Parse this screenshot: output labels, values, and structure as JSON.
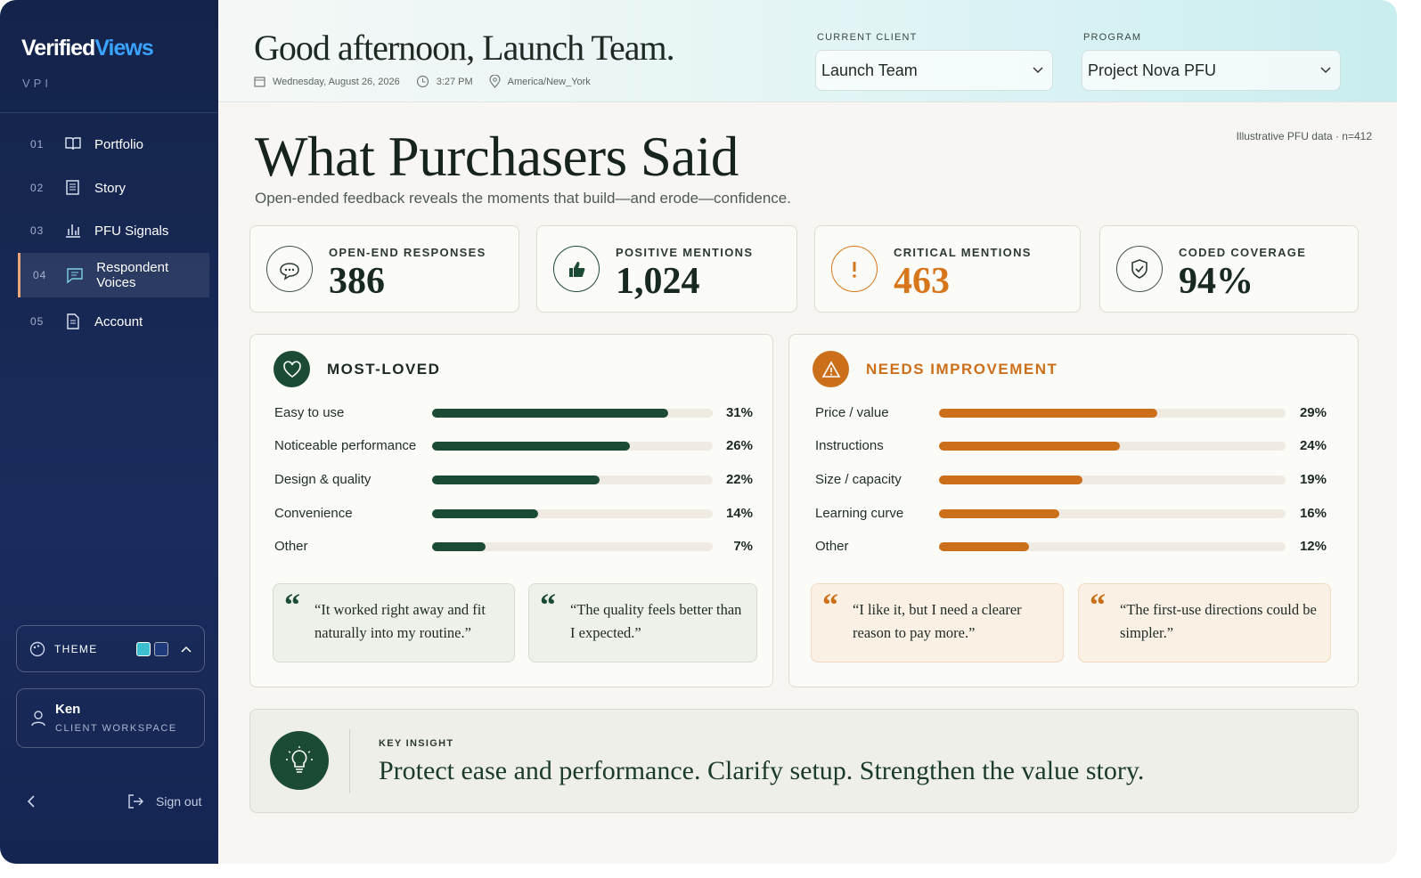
{
  "sidebar": {
    "brand_a": "Verified",
    "brand_b": "Views",
    "sub": "VPI",
    "nav": [
      {
        "num": "01",
        "label": "Portfolio"
      },
      {
        "num": "02",
        "label": "Story"
      },
      {
        "num": "03",
        "label": "PFU Signals"
      },
      {
        "num": "04",
        "label": "Respondent Voices"
      },
      {
        "num": "05",
        "label": "Account"
      }
    ],
    "theme_label": "THEME",
    "user": {
      "name": "Ken",
      "role": "CLIENT WORKSPACE"
    },
    "sign_out": "Sign out"
  },
  "header": {
    "greeting": "Good afternoon, Launch Team.",
    "date": "Wednesday, August 26, 2026",
    "time": "3:27 PM",
    "timezone": "America/New_York",
    "client_label": "CURRENT CLIENT",
    "client": "Launch Team",
    "program_label": "PROGRAM",
    "program": "Project Nova PFU"
  },
  "page": {
    "title": "What Purchasers Said",
    "subtitle": "Open-ended feedback reveals the moments that build—and erode—confidence.",
    "note": "Illustrative PFU data · n=412"
  },
  "kpis": [
    {
      "label": "OPEN-END RESPONSES",
      "value": "386"
    },
    {
      "label": "POSITIVE MENTIONS",
      "value": "1,024"
    },
    {
      "label": "CRITICAL MENTIONS",
      "value": "463"
    },
    {
      "label": "CODED COVERAGE",
      "value": "94%"
    }
  ],
  "panels": [
    {
      "title": "MOST-LOVED",
      "color": "#1b4a35",
      "categories": [
        "Easy to use",
        "Noticeable performance",
        "Design & quality",
        "Convenience",
        "Other"
      ],
      "values": [
        31,
        26,
        22,
        14,
        7
      ],
      "value_labels": [
        "31%",
        "26%",
        "22%",
        "14%",
        "7%"
      ],
      "quotes": [
        "“It worked right away and fit naturally into my routine.”",
        "“The quality feels better than I expected.”"
      ]
    },
    {
      "title": "NEEDS IMPROVEMENT",
      "color": "#cc6f1a",
      "categories": [
        "Price / value",
        "Instructions",
        "Size / capacity",
        "Learning curve",
        "Other"
      ],
      "values": [
        29,
        24,
        19,
        16,
        12
      ],
      "value_labels": [
        "29%",
        "24%",
        "19%",
        "16%",
        "12%"
      ],
      "quotes": [
        "“I like it, but I need a clearer reason to pay more.”",
        "“The first-use directions could be simpler.”"
      ]
    }
  ],
  "insight": {
    "label": "KEY INSIGHT",
    "text": "Protect ease and performance. Clarify setup. Strengthen the value story."
  }
}
